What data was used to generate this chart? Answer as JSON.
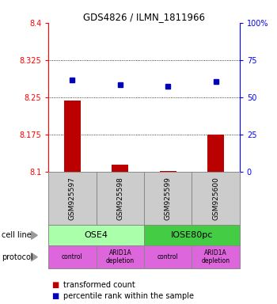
{
  "title": "GDS4826 / ILMN_1811966",
  "samples": [
    "GSM925597",
    "GSM925598",
    "GSM925599",
    "GSM925600"
  ],
  "bar_values": [
    8.244,
    8.115,
    8.102,
    8.175
  ],
  "bar_bottom": 8.1,
  "dot_values": [
    8.285,
    8.275,
    8.272,
    8.282
  ],
  "ylim_left": [
    8.1,
    8.4
  ],
  "ylim_right": [
    0,
    100
  ],
  "yticks_left": [
    8.1,
    8.175,
    8.25,
    8.325,
    8.4
  ],
  "ytick_labels_left": [
    "8.1",
    "8.175",
    "8.25",
    "8.325",
    "8.4"
  ],
  "yticks_right": [
    0,
    25,
    50,
    75,
    100
  ],
  "ytick_labels_right": [
    "0",
    "25",
    "50",
    "75",
    "100%"
  ],
  "hlines": [
    8.175,
    8.25,
    8.325
  ],
  "bar_color": "#bb0000",
  "dot_color": "#0000bb",
  "cell_line_labels": [
    "OSE4",
    "IOSE80pc"
  ],
  "cell_line_spans": [
    [
      0,
      2
    ],
    [
      2,
      4
    ]
  ],
  "cell_line_color_left": "#aaffaa",
  "cell_line_color_right": "#44cc44",
  "protocol_labels": [
    "control",
    "ARID1A\ndepletion",
    "control",
    "ARID1A\ndepletion"
  ],
  "protocol_color": "#dd66dd",
  "sample_box_color": "#cccccc",
  "legend_bar_label": "transformed count",
  "legend_dot_label": "percentile rank within the sample",
  "cell_line_label": "cell line",
  "protocol_label": "protocol"
}
